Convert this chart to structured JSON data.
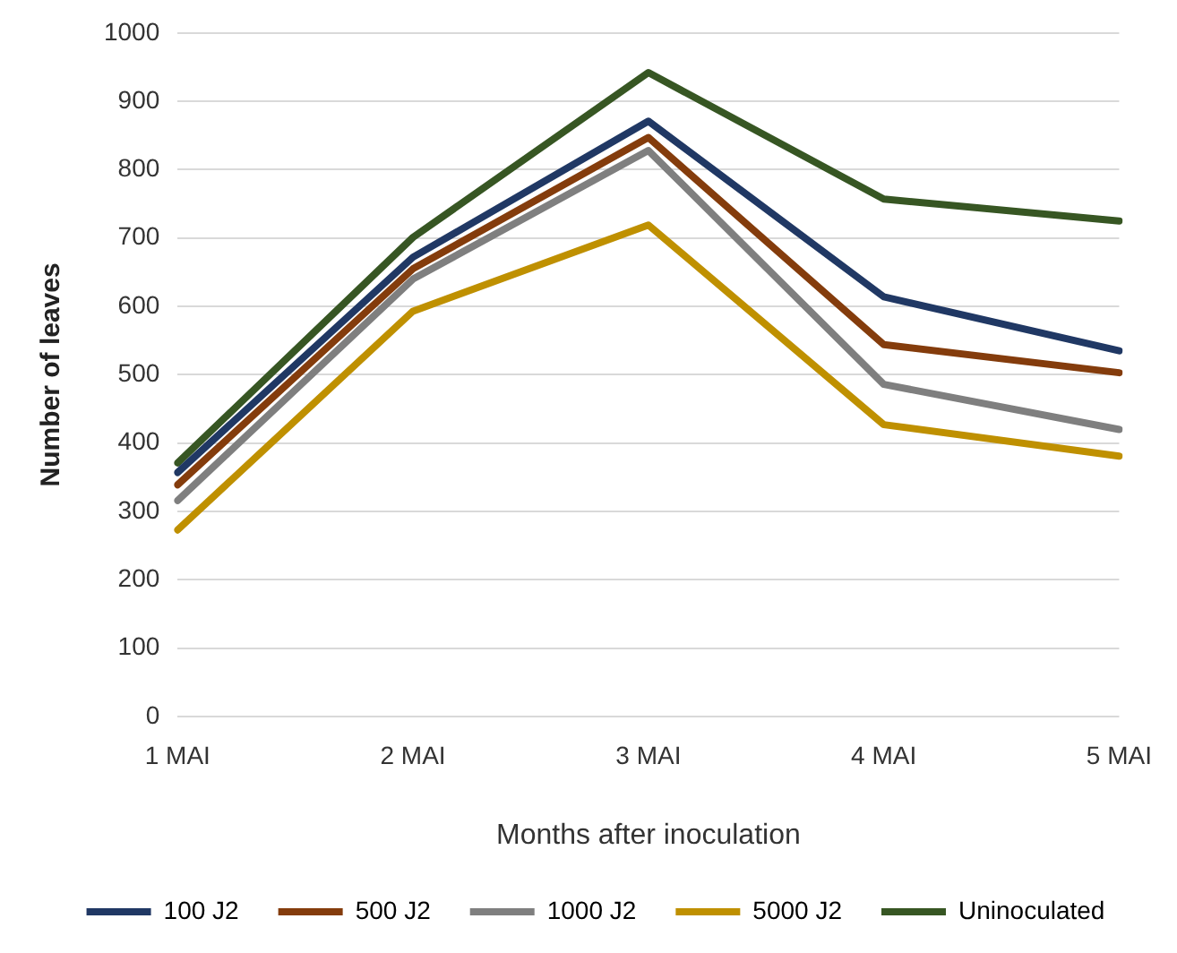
{
  "chart_data": {
    "type": "line",
    "xlabel": "Months after inoculation",
    "ylabel": "Number of leaves",
    "categories": [
      "1 MAI",
      "2 MAI",
      "3 MAI",
      "4 MAI",
      "5 MAI"
    ],
    "series": [
      {
        "name": "100 J2",
        "color": "#203864",
        "values": [
          357,
          672,
          871,
          614,
          535
        ]
      },
      {
        "name": "500 J2",
        "color": "#843c0c",
        "values": [
          339,
          655,
          847,
          544,
          503
        ]
      },
      {
        "name": "1000 J2",
        "color": "#7f7f7f",
        "values": [
          316,
          640,
          828,
          486,
          420
        ]
      },
      {
        "name": "5000 J2",
        "color": "#bf9000",
        "values": [
          273,
          593,
          719,
          427,
          381
        ]
      },
      {
        "name": "Uninoculated",
        "color": "#375623",
        "values": [
          371,
          701,
          942,
          757,
          725
        ]
      }
    ],
    "ylim": [
      0,
      1000
    ],
    "yticks": [
      0,
      100,
      200,
      300,
      400,
      500,
      600,
      700,
      800,
      900,
      1000
    ],
    "grid": "y",
    "legend": "bottom",
    "marker": "none",
    "line_style": "solid"
  }
}
